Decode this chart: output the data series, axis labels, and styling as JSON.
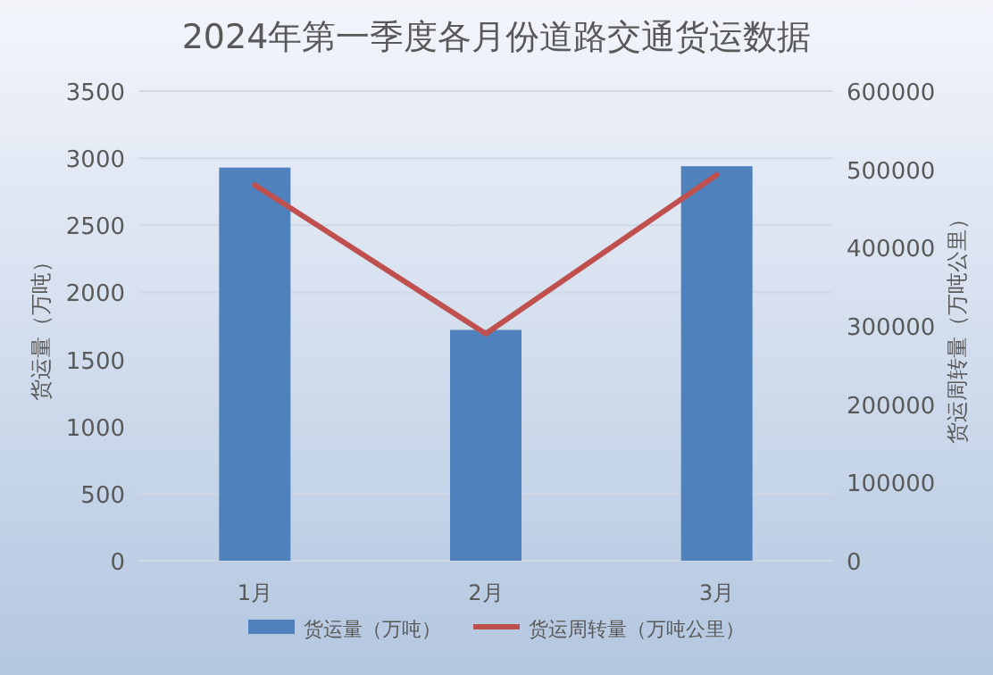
{
  "chart_data": {
    "type": "bar",
    "title": "2024年第一季度各月份道路交通货运数据",
    "categories": [
      "1月",
      "2月",
      "3月"
    ],
    "ylabel": "货运量（万吨）",
    "y2label": "货运周转量（万吨公里）",
    "ylim": [
      0,
      3500
    ],
    "yticks": [
      0,
      500,
      1000,
      1500,
      2000,
      2500,
      3000,
      3500
    ],
    "y2lim": [
      0,
      600000
    ],
    "y2ticks": [
      0,
      100000,
      200000,
      300000,
      400000,
      500000,
      600000
    ],
    "grid": "y",
    "legend": "bottom",
    "series": [
      {
        "name": "货运量（万吨）",
        "color": "#4f81bd",
        "values": [
          2930,
          1720,
          2940
        ]
      },
      {
        "name": "货运周转量（万吨公里）",
        "type": "line",
        "axis": "y2",
        "color": "#c0504d",
        "values": [
          480000,
          290000,
          493000
        ]
      }
    ]
  }
}
